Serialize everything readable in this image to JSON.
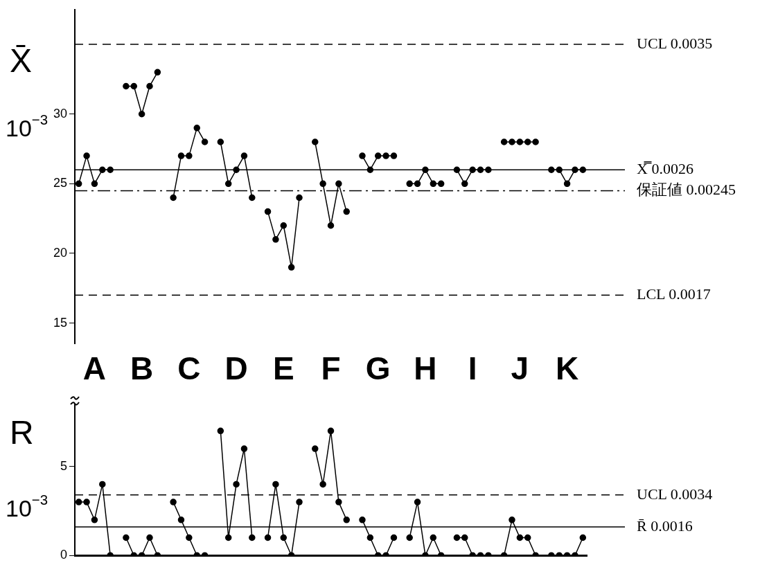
{
  "chart_data": [
    {
      "type": "line",
      "ylabel": "X̄",
      "annotations": [
        "10$^{−3}$"
      ],
      "categories": [
        null,
        null,
        "A",
        null,
        null,
        null,
        null,
        null,
        "B",
        null,
        null,
        null,
        null,
        null,
        "C",
        null,
        null,
        null,
        null,
        null,
        "D",
        null,
        null,
        null,
        null,
        null,
        "E",
        null,
        null,
        null,
        null,
        null,
        "F",
        null,
        null,
        null,
        null,
        null,
        "G",
        null,
        null,
        null,
        null,
        null,
        "H",
        null,
        null,
        null,
        null,
        null,
        "I",
        null,
        null,
        null,
        null,
        null,
        "J",
        null,
        null,
        null,
        null,
        null,
        "K",
        null,
        null
      ],
      "series": [
        {
          "color": "#000000",
          "values": [
            25,
            27,
            25,
            26,
            26,
            null,
            32,
            32,
            30,
            32,
            33,
            null,
            24,
            27,
            27,
            29,
            28,
            null,
            28,
            25,
            26,
            27,
            24,
            null,
            23,
            21,
            22,
            19,
            24,
            null,
            28,
            25,
            22,
            25,
            23,
            null,
            27,
            26,
            27,
            27,
            27,
            null,
            25,
            25,
            26,
            25,
            25,
            null,
            26,
            25,
            26,
            26,
            26,
            null,
            28,
            28,
            28,
            28,
            28,
            null,
            26,
            26,
            25,
            26,
            26
          ]
        }
      ],
      "ylim": [
        13.5,
        37.5
      ],
      "yticks": [
        15,
        20,
        25,
        30
      ],
      "grid": false,
      "marker": "circle",
      "line_style": "solid",
      "ref_lines": [
        {
          "axis": "y",
          "value": 35,
          "label": "UCL 0.0035",
          "line_style": "dashed"
        },
        {
          "axis": "y",
          "value": 26,
          "label": "X̿ 0.0026",
          "line_style": "solid"
        },
        {
          "axis": "y",
          "value": 24.5,
          "label": "保証値 0.00245",
          "line_style": "dashdot"
        },
        {
          "axis": "y",
          "value": 17,
          "label": "LCL 0.0017",
          "line_style": "dashed"
        }
      ]
    },
    {
      "type": "line",
      "ylabel": "R",
      "annotations": [
        "10$^{−3}$"
      ],
      "categories": [
        null,
        null,
        null,
        null,
        null,
        null,
        null,
        null,
        null,
        null,
        null,
        null,
        null,
        null,
        null,
        null,
        null,
        null,
        null,
        null,
        null,
        null,
        null,
        null,
        null,
        null,
        null,
        null,
        null,
        null,
        null,
        null,
        null,
        null,
        null,
        null,
        null,
        null,
        null,
        null,
        null,
        null,
        null,
        null,
        null,
        null,
        null,
        null,
        null,
        null,
        null,
        null,
        null,
        null,
        null,
        null,
        null,
        null,
        null,
        null,
        null,
        null,
        null,
        null,
        null
      ],
      "series": [
        {
          "color": "#000000",
          "values": [
            3,
            3,
            2,
            4,
            0,
            null,
            1,
            0,
            0,
            1,
            0,
            null,
            3,
            2,
            1,
            0,
            0,
            null,
            7,
            1,
            4,
            6,
            1,
            null,
            1,
            4,
            1,
            0,
            3,
            null,
            6,
            4,
            7,
            3,
            2,
            null,
            2,
            1,
            0,
            0,
            1,
            null,
            1,
            3,
            0,
            1,
            0,
            null,
            1,
            1,
            0,
            0,
            0,
            null,
            0,
            2,
            1,
            1,
            0,
            null,
            0,
            0,
            0,
            0,
            1
          ]
        }
      ],
      "ylim": [
        0,
        8.5
      ],
      "yticks": [
        0,
        5
      ],
      "grid": false,
      "marker": "circle",
      "line_style": "solid",
      "tick_labels": "y",
      "ref_lines": [
        {
          "axis": "y",
          "value": 3.4,
          "label": "UCL 0.0034",
          "line_style": "dashed"
        },
        {
          "axis": "y",
          "value": 1.6,
          "label": "R̄ 0.0016",
          "line_style": "solid"
        }
      ]
    }
  ]
}
